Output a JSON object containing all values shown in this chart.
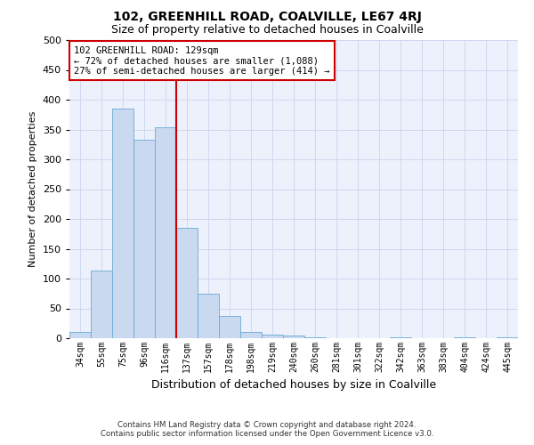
{
  "title": "102, GREENHILL ROAD, COALVILLE, LE67 4RJ",
  "subtitle": "Size of property relative to detached houses in Coalville",
  "xlabel": "Distribution of detached houses by size in Coalville",
  "ylabel": "Number of detached properties",
  "footer_line1": "Contains HM Land Registry data © Crown copyright and database right 2024.",
  "footer_line2": "Contains public sector information licensed under the Open Government Licence v3.0.",
  "categories": [
    "34sqm",
    "55sqm",
    "75sqm",
    "96sqm",
    "116sqm",
    "137sqm",
    "157sqm",
    "178sqm",
    "198sqm",
    "219sqm",
    "240sqm",
    "260sqm",
    "281sqm",
    "301sqm",
    "322sqm",
    "342sqm",
    "363sqm",
    "383sqm",
    "404sqm",
    "424sqm",
    "445sqm"
  ],
  "values": [
    10,
    113,
    385,
    333,
    353,
    185,
    75,
    37,
    10,
    6,
    5,
    1,
    0,
    0,
    0,
    2,
    0,
    0,
    2,
    0,
    2
  ],
  "bar_color": "#c8d9f0",
  "bar_edge_color": "#6aaad4",
  "highlight_index": 5,
  "highlight_color": "#cc0000",
  "ylim": [
    0,
    500
  ],
  "yticks": [
    0,
    50,
    100,
    150,
    200,
    250,
    300,
    350,
    400,
    450,
    500
  ],
  "annotation_line1": "102 GREENHILL ROAD: 129sqm",
  "annotation_line2": "← 72% of detached houses are smaller (1,088)",
  "annotation_line3": "27% of semi-detached houses are larger (414) →",
  "annotation_box_color": "#ffffff",
  "annotation_border_color": "#cc0000",
  "background_color": "#edf1fb",
  "grid_color": "#d0d8f0",
  "title_fontsize": 10,
  "subtitle_fontsize": 9
}
